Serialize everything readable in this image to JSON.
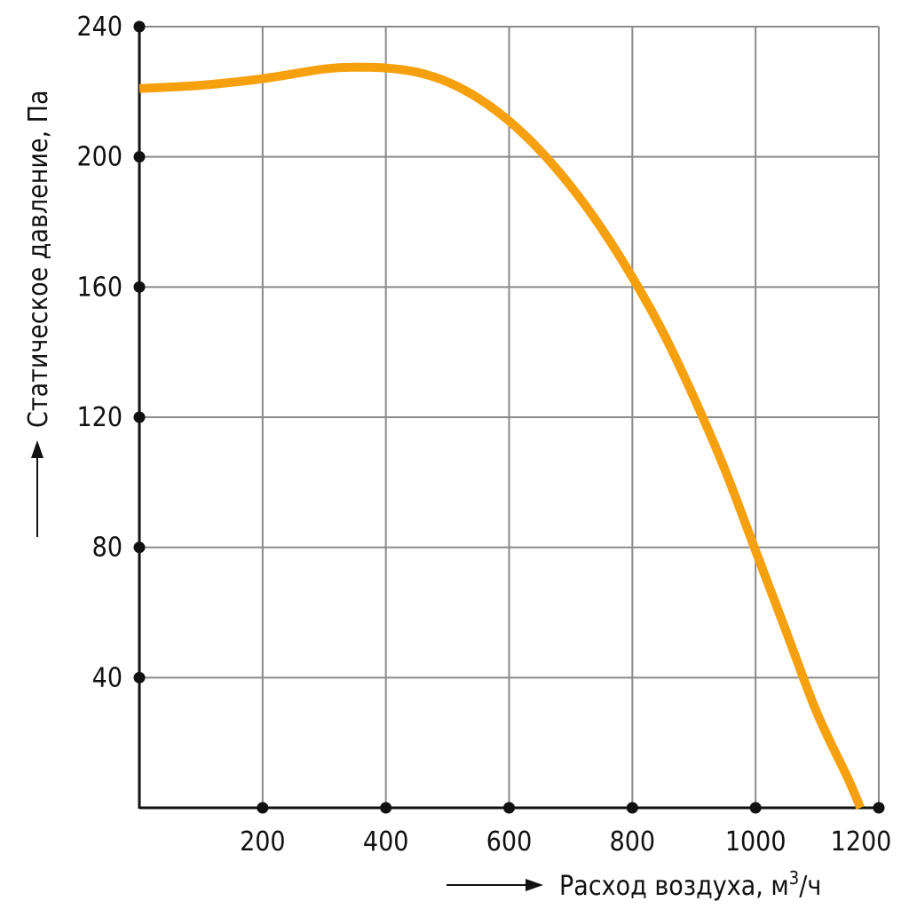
{
  "chart_data": {
    "type": "line",
    "xlabel": "Расход воздуха, м",
    "xlabel_sup": "3",
    "xlabel_suffix": "/ч",
    "ylabel": "Статическое давление, Па",
    "x_ticks": [
      "200",
      "400",
      "600",
      "800",
      "1000",
      "1200"
    ],
    "y_ticks": [
      "40",
      "80",
      "120",
      "160",
      "200",
      "240"
    ],
    "xlim": [
      0,
      1200
    ],
    "ylim": [
      0,
      240
    ],
    "grid": true,
    "series": [
      {
        "color": "#F7A00E",
        "x": [
          0,
          100,
          200,
          300,
          350,
          400,
          450,
          500,
          550,
          600,
          650,
          700,
          750,
          800,
          850,
          900,
          950,
          1000,
          1050,
          1100,
          1150,
          1170
        ],
        "y": [
          221,
          222,
          224,
          227,
          227.5,
          227.3,
          226,
          223,
          218,
          211,
          202,
          191,
          178,
          163,
          146,
          126,
          104,
          79,
          54,
          29,
          9,
          0
        ]
      }
    ]
  }
}
